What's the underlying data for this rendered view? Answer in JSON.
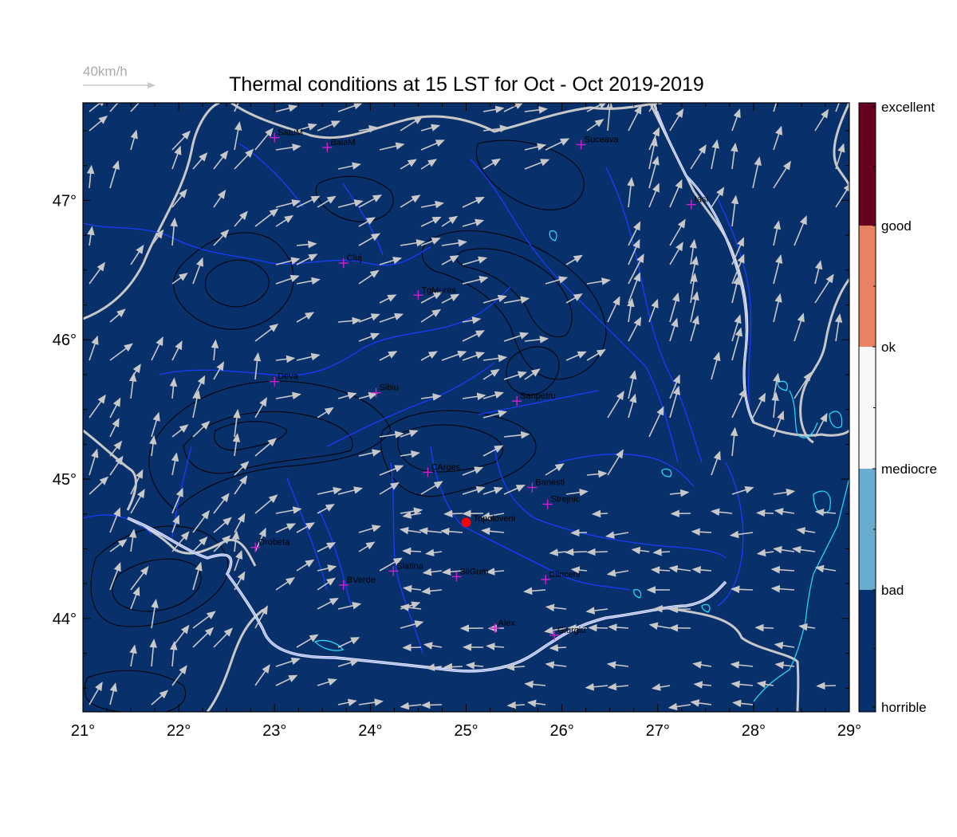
{
  "map": {
    "title": "Thermal conditions at 15 LST for Oct - Oct  2019-2019",
    "wind_scale_label": "40km/h",
    "extent": {
      "lon": [
        21,
        29
      ],
      "lat": [
        43.33,
        47.7
      ]
    },
    "lon_ticks": [
      "21°",
      "22°",
      "23°",
      "24°",
      "25°",
      "26°",
      "27°",
      "28°",
      "29°"
    ],
    "lat_ticks": [
      "44°",
      "45°",
      "46°",
      "47°"
    ],
    "colors": {
      "field": "#08306b",
      "border": "#c8c8c8",
      "river": "#1a3cff",
      "danube": "#a9b8ff",
      "lake": "#26e0ff",
      "contour": "#000000",
      "wind": "#c8c8c8",
      "station": "#d020d0",
      "highlight": "#ff0000"
    },
    "cities": [
      {
        "name": "SatuM",
        "lon": 23.0,
        "lat": 47.45
      },
      {
        "name": "BaiaM",
        "lon": 23.55,
        "lat": 47.38
      },
      {
        "name": "Suceava",
        "lon": 26.2,
        "lat": 47.4
      },
      {
        "name": "Iasi",
        "lon": 27.35,
        "lat": 46.97
      },
      {
        "name": "Cluj",
        "lon": 23.72,
        "lat": 46.55
      },
      {
        "name": "TgMures",
        "lon": 24.5,
        "lat": 46.32
      },
      {
        "name": "Deva",
        "lon": 23.0,
        "lat": 45.7
      },
      {
        "name": "Sibiu",
        "lon": 24.06,
        "lat": 45.62
      },
      {
        "name": "Sanpetru",
        "lon": 25.53,
        "lat": 45.56
      },
      {
        "name": "CArges",
        "lon": 24.6,
        "lat": 45.05
      },
      {
        "name": "Banesti",
        "lon": 25.69,
        "lat": 44.94
      },
      {
        "name": "Strejnic",
        "lon": 25.85,
        "lat": 44.82
      },
      {
        "name": "Drobeta",
        "lon": 22.8,
        "lat": 44.51
      },
      {
        "name": "Slatina",
        "lon": 24.24,
        "lat": 44.34
      },
      {
        "name": "SilGum",
        "lon": 24.9,
        "lat": 44.3
      },
      {
        "name": "Clinceni",
        "lon": 25.83,
        "lat": 44.28
      },
      {
        "name": "BVerde",
        "lon": 23.72,
        "lat": 44.24
      },
      {
        "name": "Alex",
        "lon": 25.3,
        "lat": 43.93
      },
      {
        "name": "Giurgiu",
        "lon": 25.92,
        "lat": 43.88
      }
    ],
    "highlight": {
      "name": "Topoloveni",
      "lon": 25.0,
      "lat": 44.69
    },
    "legend": {
      "classes": [
        {
          "label": "excellent",
          "color": "#67001f"
        },
        {
          "label": "good",
          "color": "#e78363"
        },
        {
          "label": "ok",
          "color": "#f7f7f7"
        },
        {
          "label": "mediocre",
          "color": "#6aacd0"
        },
        {
          "label": "bad",
          "color": "#08306b"
        },
        {
          "label": "horrible",
          "color": "#08306b"
        }
      ]
    }
  }
}
